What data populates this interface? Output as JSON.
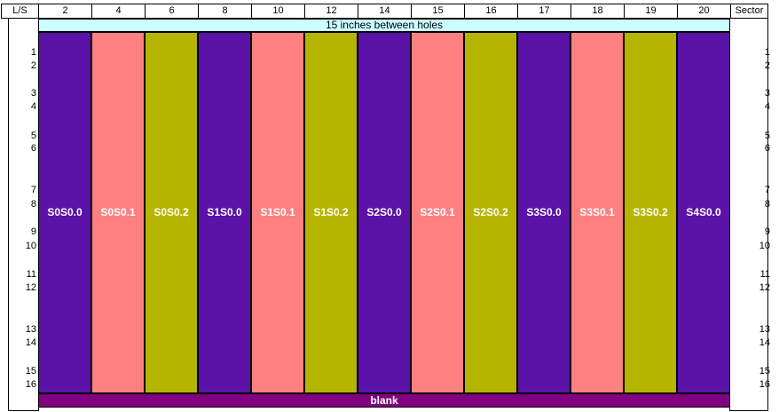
{
  "header": {
    "left_label": "L/S",
    "right_label": "Sector",
    "columns": [
      "2",
      "4",
      "6",
      "8",
      "10",
      "12",
      "14",
      "15",
      "16",
      "17",
      "18",
      "19",
      "20"
    ]
  },
  "banner": "15 inches between holes",
  "slots": [
    {
      "label": "S0S0.0",
      "color": "#5b12a7"
    },
    {
      "label": "S0S0.1",
      "color": "#ff8080"
    },
    {
      "label": "S0S0.2",
      "color": "#b5b500"
    },
    {
      "label": "S1S0.0",
      "color": "#5b12a7"
    },
    {
      "label": "S1S0.1",
      "color": "#ff8080"
    },
    {
      "label": "S1S0.2",
      "color": "#b5b500"
    },
    {
      "label": "S2S0.0",
      "color": "#5b12a7"
    },
    {
      "label": "S2S0.1",
      "color": "#ff8080"
    },
    {
      "label": "S2S0.2",
      "color": "#b5b500"
    },
    {
      "label": "S3S0.0",
      "color": "#5b12a7"
    },
    {
      "label": "S3S0.1",
      "color": "#ff8080"
    },
    {
      "label": "S3S0.2",
      "color": "#b5b500"
    },
    {
      "label": "S4S0.0",
      "color": "#5b12a7"
    }
  ],
  "footer": "blank",
  "row_numbers": [
    "1",
    "2",
    "3",
    "4",
    "5",
    "6",
    "7",
    "8",
    "9",
    "10",
    "11",
    "12",
    "13",
    "14",
    "15",
    "16"
  ]
}
